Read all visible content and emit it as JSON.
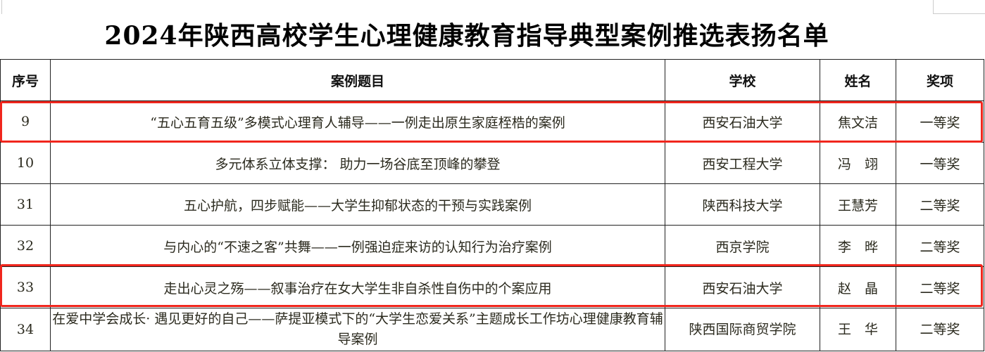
{
  "title": "2024年陕西高校学生心理健康教育指导典型案例推选表扬名单",
  "headers": [
    "序号",
    "案例题目",
    "学校",
    "姓名",
    "奖项"
  ],
  "rows": [
    {
      "no": "9",
      "title": "“五心五育五级”多模式心理育人辅导——一例走出原生家庭桎梏的案例",
      "school": "西安石油大学",
      "name": "焦文洁",
      "award": "一等奖",
      "highlighted": true
    },
    {
      "no": "10",
      "title": "多元体系立体支撑： 助力一场谷底至顶峰的攀登",
      "school": "西安工程大学",
      "name": "冯　翊",
      "award": "一等奖",
      "highlighted": false
    },
    {
      "no": "31",
      "title": "五心护航，四步赋能——大学生抑郁状态的干预与实践案例",
      "school": "陕西科技大学",
      "name": "王慧芳",
      "award": "二等奖",
      "highlighted": false
    },
    {
      "no": "32",
      "title": "与内心的“不速之客”共舞——一例强迫症来访的认知行为治疗案例",
      "school": "西京学院",
      "name": "李　晔",
      "award": "二等奖",
      "highlighted": false
    },
    {
      "no": "33",
      "title": "走出心灵之殇——叙事治疗在女大学生非自杀性自伤中的个案应用",
      "school": "西安石油大学",
      "name": "赵　晶",
      "award": "二等奖",
      "highlighted": true
    },
    {
      "no": "34",
      "title": "在爱中学会成长· 遇见更好的自己——萨提亚模式下的“大学生恋爱关系”主题成长工作坊心理健康教育辅导案例",
      "school": "陕西国际商贸学院",
      "name": "王　华",
      "award": "二等奖",
      "highlighted": false
    }
  ],
  "highlight_color": "#f0261d"
}
